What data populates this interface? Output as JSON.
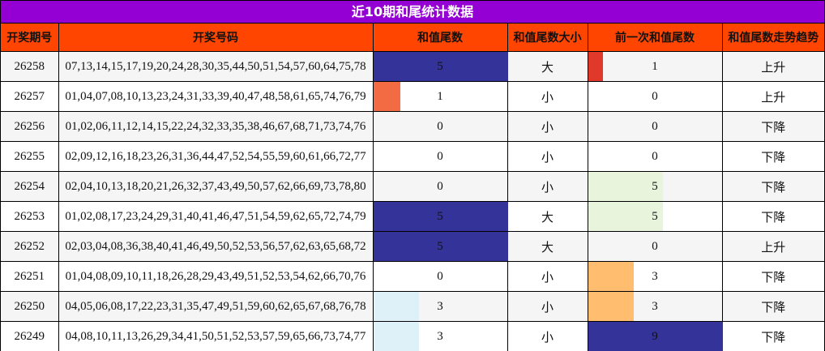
{
  "title": "近10期和尾统计数据",
  "headers": [
    "开奖期号",
    "开奖号码",
    "和值尾数",
    "和值尾数大小",
    "前一次和值尾数",
    "和值尾数走势趋势"
  ],
  "colors": {
    "title_bg": "#9400d3",
    "header_bg": "#ff4500",
    "bar_by_value": {
      "0": "",
      "1": "#f26b43",
      "3": "#def1f8",
      "5": "#333399",
      "9": "#333399"
    },
    "prev_bar_by_value": {
      "0": "",
      "1": "#e0392b",
      "3": "#ffbe6f",
      "5": "#e8f5dc",
      "9": "#333399"
    }
  },
  "rows": [
    {
      "period": "26258",
      "numbers": "07,13,14,15,17,19,20,24,28,30,35,44,50,51,54,57,60,64,75,78",
      "tail": 5,
      "size": "大",
      "prev_tail": 1,
      "trend": "上升"
    },
    {
      "period": "26257",
      "numbers": "01,04,07,08,10,13,23,24,31,33,39,40,47,48,58,61,65,74,76,79",
      "tail": 1,
      "size": "小",
      "prev_tail": 0,
      "trend": "上升"
    },
    {
      "period": "26256",
      "numbers": "01,02,06,11,12,14,15,22,24,32,33,35,38,46,67,68,71,73,74,76",
      "tail": 0,
      "size": "小",
      "prev_tail": 0,
      "trend": "下降"
    },
    {
      "period": "26255",
      "numbers": "02,09,12,16,18,23,26,31,36,44,47,52,54,55,59,60,61,66,72,77",
      "tail": 0,
      "size": "小",
      "prev_tail": 0,
      "trend": "下降"
    },
    {
      "period": "26254",
      "numbers": "02,04,10,13,18,20,21,26,32,37,43,49,50,57,62,66,69,73,78,80",
      "tail": 0,
      "size": "小",
      "prev_tail": 5,
      "trend": "下降"
    },
    {
      "period": "26253",
      "numbers": "01,02,08,17,23,24,29,31,40,41,46,47,51,54,59,62,65,72,74,79",
      "tail": 5,
      "size": "大",
      "prev_tail": 5,
      "trend": "下降"
    },
    {
      "period": "26252",
      "numbers": "02,03,04,08,36,38,40,41,46,49,50,52,53,56,57,62,63,65,68,72",
      "tail": 5,
      "size": "大",
      "prev_tail": 0,
      "trend": "上升"
    },
    {
      "period": "26251",
      "numbers": "01,04,08,09,10,11,18,26,28,29,43,49,51,52,53,54,62,66,70,76",
      "tail": 0,
      "size": "小",
      "prev_tail": 3,
      "trend": "下降"
    },
    {
      "period": "26250",
      "numbers": "04,05,06,08,17,22,23,31,35,47,49,51,59,60,62,65,67,68,76,78",
      "tail": 3,
      "size": "小",
      "prev_tail": 3,
      "trend": "下降"
    },
    {
      "period": "26249",
      "numbers": "04,08,10,11,13,26,29,34,41,50,51,52,53,57,59,65,66,73,74,77",
      "tail": 3,
      "size": "小",
      "prev_tail": 9,
      "trend": "下降"
    }
  ]
}
